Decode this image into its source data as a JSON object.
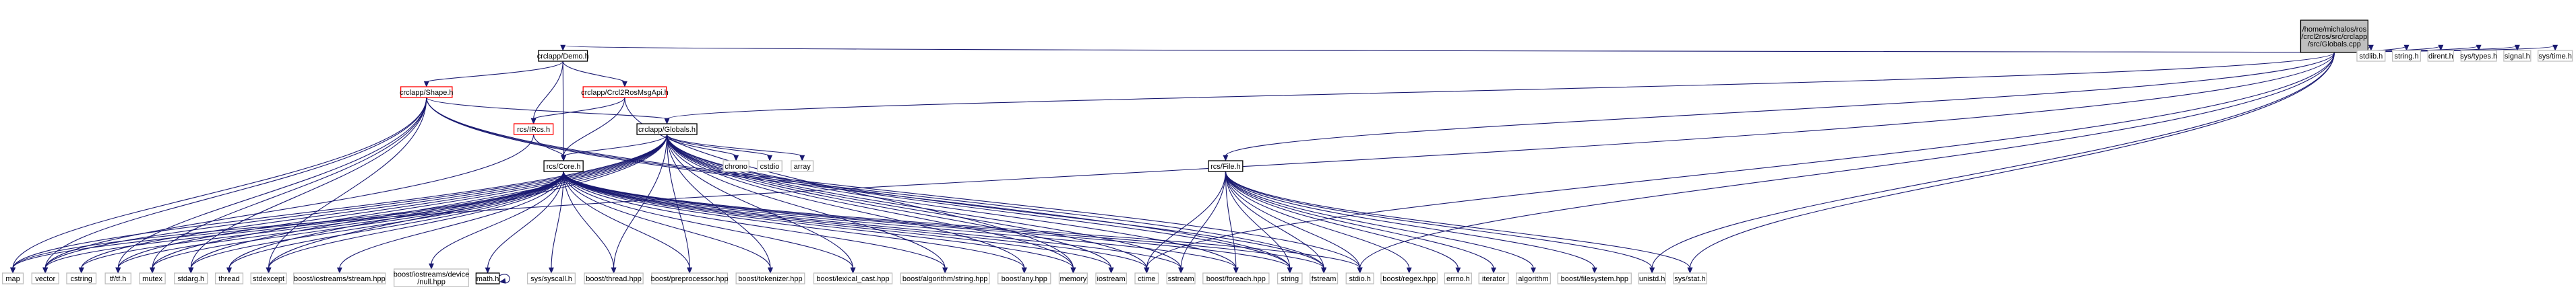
{
  "graph": {
    "nodes": [
      {
        "id": "root",
        "label": [
          "/home/michalos/ros",
          "/crcl2ros/src/crclapp",
          "/src/Globals.cpp"
        ],
        "style": "root",
        "interactable": true
      },
      {
        "id": "demo",
        "label": [
          "crclapp/Demo.h"
        ],
        "style": "black",
        "interactable": true
      },
      {
        "id": "shape",
        "label": [
          "crclapp/Shape.h"
        ],
        "style": "red",
        "interactable": true
      },
      {
        "id": "crclmsg",
        "label": [
          "crclapp/Crcl2RosMsgApi.h"
        ],
        "style": "red",
        "interactable": true
      },
      {
        "id": "ircs",
        "label": [
          "rcs/IRcs.h"
        ],
        "style": "red",
        "interactable": true
      },
      {
        "id": "globals_h",
        "label": [
          "crclapp/Globals.h"
        ],
        "style": "black",
        "interactable": true
      },
      {
        "id": "core",
        "label": [
          "rcs/Core.h"
        ],
        "style": "black",
        "interactable": true
      },
      {
        "id": "file",
        "label": [
          "rcs/File.h"
        ],
        "style": "black",
        "interactable": true
      },
      {
        "id": "map",
        "label": [
          "map"
        ],
        "style": "gray",
        "interactable": false
      },
      {
        "id": "vector",
        "label": [
          "vector"
        ],
        "style": "gray",
        "interactable": false
      },
      {
        "id": "cstring",
        "label": [
          "cstring"
        ],
        "style": "gray",
        "interactable": false
      },
      {
        "id": "tfh",
        "label": [
          "tf/tf.h"
        ],
        "style": "gray",
        "interactable": false
      },
      {
        "id": "mutex",
        "label": [
          "mutex"
        ],
        "style": "gray",
        "interactable": false
      },
      {
        "id": "stdarg",
        "label": [
          "stdarg.h"
        ],
        "style": "gray",
        "interactable": false
      },
      {
        "id": "thread",
        "label": [
          "thread"
        ],
        "style": "gray",
        "interactable": false
      },
      {
        "id": "stdexcept",
        "label": [
          "stdexcept"
        ],
        "style": "gray",
        "interactable": false
      },
      {
        "id": "biostream",
        "label": [
          "boost/iostreams/stream.hpp"
        ],
        "style": "gray",
        "interactable": false
      },
      {
        "id": "bnull",
        "label": [
          "boost/iostreams/device",
          "/null.hpp"
        ],
        "style": "gray",
        "interactable": false
      },
      {
        "id": "math",
        "label": [
          "math.h"
        ],
        "style": "black",
        "interactable": true
      },
      {
        "id": "syscall",
        "label": [
          "sys/syscall.h"
        ],
        "style": "gray",
        "interactable": false
      },
      {
        "id": "bthread",
        "label": [
          "boost/thread.hpp"
        ],
        "style": "gray",
        "interactable": false
      },
      {
        "id": "bpre",
        "label": [
          "boost/preprocessor.hpp"
        ],
        "style": "gray",
        "interactable": false
      },
      {
        "id": "btok",
        "label": [
          "boost/tokenizer.hpp"
        ],
        "style": "gray",
        "interactable": false
      },
      {
        "id": "blex",
        "label": [
          "boost/lexical_cast.hpp"
        ],
        "style": "gray",
        "interactable": false
      },
      {
        "id": "balgo",
        "label": [
          "boost/algorithm/string.hpp"
        ],
        "style": "gray",
        "interactable": false
      },
      {
        "id": "bany",
        "label": [
          "boost/any.hpp"
        ],
        "style": "gray",
        "interactable": false
      },
      {
        "id": "memory",
        "label": [
          "memory"
        ],
        "style": "gray",
        "interactable": false
      },
      {
        "id": "iostream",
        "label": [
          "iostream"
        ],
        "style": "gray",
        "interactable": false
      },
      {
        "id": "ctime",
        "label": [
          "ctime"
        ],
        "style": "gray",
        "interactable": false
      },
      {
        "id": "sstream",
        "label": [
          "sstream"
        ],
        "style": "gray",
        "interactable": false
      },
      {
        "id": "bforeach",
        "label": [
          "boost/foreach.hpp"
        ],
        "style": "gray",
        "interactable": false
      },
      {
        "id": "string",
        "label": [
          "string"
        ],
        "style": "gray",
        "interactable": false
      },
      {
        "id": "fstream",
        "label": [
          "fstream"
        ],
        "style": "gray",
        "interactable": false
      },
      {
        "id": "stdioh",
        "label": [
          "stdio.h"
        ],
        "style": "gray",
        "interactable": false
      },
      {
        "id": "bregex",
        "label": [
          "boost/regex.hpp"
        ],
        "style": "gray",
        "interactable": false
      },
      {
        "id": "errno",
        "label": [
          "errno.h"
        ],
        "style": "gray",
        "interactable": false
      },
      {
        "id": "iterator",
        "label": [
          "iterator"
        ],
        "style": "gray",
        "interactable": false
      },
      {
        "id": "algorithm",
        "label": [
          "algorithm"
        ],
        "style": "gray",
        "interactable": false
      },
      {
        "id": "bfs",
        "label": [
          "boost/filesystem.hpp"
        ],
        "style": "gray",
        "interactable": false
      },
      {
        "id": "unistd",
        "label": [
          "unistd.h"
        ],
        "style": "gray",
        "interactable": false
      },
      {
        "id": "sysstat",
        "label": [
          "sys/stat.h"
        ],
        "style": "gray",
        "interactable": false
      },
      {
        "id": "chrono",
        "label": [
          "chrono"
        ],
        "style": "gray",
        "interactable": false
      },
      {
        "id": "cstdio",
        "label": [
          "cstdio"
        ],
        "style": "gray",
        "interactable": false
      },
      {
        "id": "array",
        "label": [
          "array"
        ],
        "style": "gray",
        "interactable": false
      },
      {
        "id": "stdlib",
        "label": [
          "stdlib.h"
        ],
        "style": "gray",
        "interactable": false
      },
      {
        "id": "stringh",
        "label": [
          "string.h"
        ],
        "style": "gray",
        "interactable": false
      },
      {
        "id": "dirent",
        "label": [
          "dirent.h"
        ],
        "style": "gray",
        "interactable": false
      },
      {
        "id": "systypes",
        "label": [
          "sys/types.h"
        ],
        "style": "gray",
        "interactable": false
      },
      {
        "id": "signal",
        "label": [
          "signal.h"
        ],
        "style": "gray",
        "interactable": false
      },
      {
        "id": "systime",
        "label": [
          "sys/time.h"
        ],
        "style": "gray",
        "interactable": false
      }
    ],
    "edges": [
      [
        "root",
        "demo"
      ],
      [
        "root",
        "globals_h"
      ],
      [
        "root",
        "file"
      ],
      [
        "root",
        "map"
      ],
      [
        "root",
        "stdlib"
      ],
      [
        "root",
        "stringh"
      ],
      [
        "root",
        "dirent"
      ],
      [
        "root",
        "systypes"
      ],
      [
        "root",
        "signal"
      ],
      [
        "root",
        "systime"
      ],
      [
        "root",
        "ctime"
      ],
      [
        "root",
        "stdioh"
      ],
      [
        "root",
        "unistd"
      ],
      [
        "root",
        "sysstat"
      ],
      [
        "demo",
        "shape"
      ],
      [
        "demo",
        "crclmsg"
      ],
      [
        "demo",
        "ircs"
      ],
      [
        "demo",
        "core"
      ],
      [
        "crclmsg",
        "ircs"
      ],
      [
        "crclmsg",
        "core"
      ],
      [
        "crclmsg",
        "memory"
      ],
      [
        "shape",
        "globals_h"
      ],
      [
        "shape",
        "map"
      ],
      [
        "shape",
        "vector"
      ],
      [
        "shape",
        "tfh"
      ],
      [
        "shape",
        "mutex"
      ],
      [
        "shape",
        "stdarg"
      ],
      [
        "shape",
        "stdexcept"
      ],
      [
        "shape",
        "string"
      ],
      [
        "shape",
        "fstream"
      ],
      [
        "shape",
        "stdioh"
      ],
      [
        "ircs",
        "core"
      ],
      [
        "ircs",
        "vector"
      ],
      [
        "globals_h",
        "core"
      ],
      [
        "globals_h",
        "map"
      ],
      [
        "globals_h",
        "vector"
      ],
      [
        "globals_h",
        "cstring"
      ],
      [
        "globals_h",
        "tfh"
      ],
      [
        "globals_h",
        "mutex"
      ],
      [
        "globals_h",
        "stdarg"
      ],
      [
        "globals_h",
        "thread"
      ],
      [
        "globals_h",
        "stdexcept"
      ],
      [
        "globals_h",
        "bthread"
      ],
      [
        "globals_h",
        "bpre"
      ],
      [
        "globals_h",
        "btok"
      ],
      [
        "globals_h",
        "blex"
      ],
      [
        "globals_h",
        "balgo"
      ],
      [
        "globals_h",
        "bany"
      ],
      [
        "globals_h",
        "memory"
      ],
      [
        "globals_h",
        "iostream"
      ],
      [
        "globals_h",
        "ctime"
      ],
      [
        "globals_h",
        "sstream"
      ],
      [
        "globals_h",
        "bforeach"
      ],
      [
        "globals_h",
        "string"
      ],
      [
        "globals_h",
        "fstream"
      ],
      [
        "globals_h",
        "chrono"
      ],
      [
        "globals_h",
        "cstdio"
      ],
      [
        "globals_h",
        "array"
      ],
      [
        "core",
        "map"
      ],
      [
        "core",
        "vector"
      ],
      [
        "core",
        "cstring"
      ],
      [
        "core",
        "tfh"
      ],
      [
        "core",
        "mutex"
      ],
      [
        "core",
        "stdarg"
      ],
      [
        "core",
        "thread"
      ],
      [
        "core",
        "stdexcept"
      ],
      [
        "core",
        "biostream"
      ],
      [
        "core",
        "bnull"
      ],
      [
        "core",
        "math"
      ],
      [
        "core",
        "syscall"
      ],
      [
        "core",
        "bthread"
      ],
      [
        "core",
        "bpre"
      ],
      [
        "core",
        "btok"
      ],
      [
        "core",
        "blex"
      ],
      [
        "core",
        "balgo"
      ],
      [
        "core",
        "bany"
      ],
      [
        "core",
        "memory"
      ],
      [
        "core",
        "iostream"
      ],
      [
        "core",
        "ctime"
      ],
      [
        "core",
        "sstream"
      ],
      [
        "core",
        "bforeach"
      ],
      [
        "core",
        "string"
      ],
      [
        "core",
        "fstream"
      ],
      [
        "core",
        "stdioh"
      ],
      [
        "math",
        "math"
      ],
      [
        "file",
        "ctime"
      ],
      [
        "file",
        "sstream"
      ],
      [
        "file",
        "bforeach"
      ],
      [
        "file",
        "string"
      ],
      [
        "file",
        "fstream"
      ],
      [
        "file",
        "stdioh"
      ],
      [
        "file",
        "bregex"
      ],
      [
        "file",
        "errno"
      ],
      [
        "file",
        "iterator"
      ],
      [
        "file",
        "algorithm"
      ],
      [
        "file",
        "bfs"
      ],
      [
        "file",
        "unistd"
      ],
      [
        "file",
        "sysstat"
      ]
    ]
  }
}
